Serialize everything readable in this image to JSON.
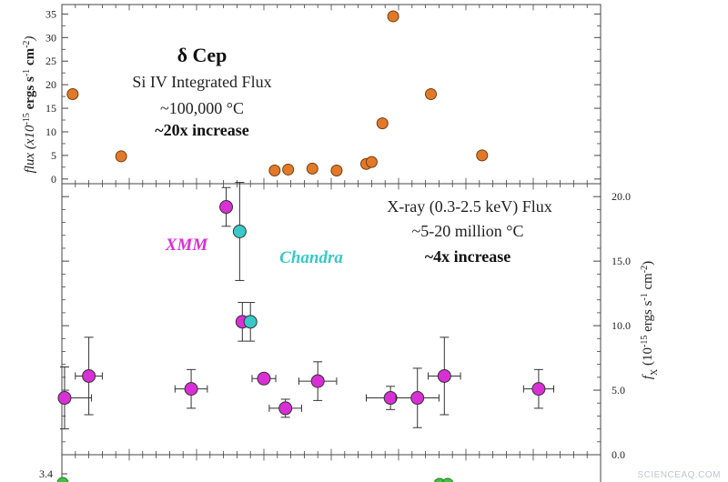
{
  "chart_data": [
    {
      "type": "scatter",
      "panel": "top",
      "title": "δ Cep",
      "subtitle": "Si IV Integrated Flux",
      "annotations": [
        "~100,000 °C",
        "~20x increase"
      ],
      "ylabel": "flux (x10^-15 ergs s^-1 cm^-2)",
      "ylabel_parts": {
        "pre": "flux (x10",
        "exp1": "-15",
        "mid1": " ergs s",
        "exp2": "-1",
        "mid2": " cm",
        "exp3": "-2",
        "post": ")"
      },
      "ylim": [
        -1,
        37
      ],
      "yticks": [
        "0",
        "5",
        "10",
        "15",
        "20",
        "25",
        "30",
        "35"
      ],
      "ytick_values": [
        0,
        5,
        10,
        15,
        20,
        25,
        30,
        35
      ],
      "xlim": [
        0,
        100
      ],
      "grid": false,
      "color": "#e07a2a",
      "points": [
        {
          "x": 2.0,
          "y": 18.0
        },
        {
          "x": 11.0,
          "y": 4.8
        },
        {
          "x": 39.5,
          "y": 1.8
        },
        {
          "x": 42.0,
          "y": 2.0
        },
        {
          "x": 46.5,
          "y": 2.2
        },
        {
          "x": 51.0,
          "y": 1.8
        },
        {
          "x": 56.5,
          "y": 3.2
        },
        {
          "x": 57.5,
          "y": 3.6
        },
        {
          "x": 59.5,
          "y": 11.8
        },
        {
          "x": 61.5,
          "y": 34.5
        },
        {
          "x": 68.5,
          "y": 18.0
        },
        {
          "x": 78.0,
          "y": 5.0
        }
      ]
    },
    {
      "type": "scatter",
      "panel": "middle",
      "title": "X-ray (0.3-2.5 keV) Flux",
      "annotations": [
        "~5-20 million °C",
        "~4x increase"
      ],
      "ylabel": "f_X (10^-15 ergs s^-1 cm^-2)",
      "ylabel_parts": {
        "pre": "f",
        "sub": "X",
        "pre2": " (10",
        "exp1": "-15",
        "mid1": " ergs s",
        "exp2": "-1",
        "mid2": " cm",
        "exp3": "-2",
        "post": ")"
      },
      "yaxis_side": "right",
      "ylim": [
        0,
        21
      ],
      "yticks": [
        "0.0",
        "5.0",
        "10.0",
        "15.0",
        "20.0"
      ],
      "ytick_values": [
        0,
        5,
        10,
        15,
        20
      ],
      "xlim": [
        0,
        100
      ],
      "grid": false,
      "series": [
        {
          "name": "XMM",
          "color": "#d92fd6",
          "points": [
            {
              "x": 0.5,
              "y": 4.4,
              "xerr": 5.0,
              "yerr": 2.4
            },
            {
              "x": 5.0,
              "y": 6.1,
              "xerr": 2.5,
              "yerr": 3.0
            },
            {
              "x": 24.0,
              "y": 5.1,
              "xerr": 3.0,
              "yerr": 1.5
            },
            {
              "x": 30.5,
              "y": 19.2,
              "xerr": 0.8,
              "yerr": 1.5
            },
            {
              "x": 33.5,
              "y": 10.3,
              "xerr": 1.0,
              "yerr": 1.5
            },
            {
              "x": 37.5,
              "y": 5.9,
              "xerr": 2.2,
              "yerr": 0.0
            },
            {
              "x": 41.5,
              "y": 3.6,
              "xerr": 3.0,
              "yerr": 0.7
            },
            {
              "x": 47.5,
              "y": 5.7,
              "xerr": 3.5,
              "yerr": 1.5
            },
            {
              "x": 61.0,
              "y": 4.4,
              "xerr": 4.5,
              "yerr": 0.9
            },
            {
              "x": 66.0,
              "y": 4.4,
              "xerr": 4.0,
              "yerr": 2.3
            },
            {
              "x": 71.0,
              "y": 6.1,
              "xerr": 3.0,
              "yerr": 3.0
            },
            {
              "x": 88.5,
              "y": 5.1,
              "xerr": 2.8,
              "yerr": 1.5
            }
          ]
        },
        {
          "name": "Chandra",
          "color": "#38c8c8",
          "points": [
            {
              "x": 33.0,
              "y": 17.3,
              "xerr": 0.0,
              "yerr": 3.8
            },
            {
              "x": 35.0,
              "y": 10.3,
              "xerr": 1.0,
              "yerr": 1.5
            }
          ]
        }
      ]
    },
    {
      "type": "scatter",
      "panel": "bottom",
      "yticks": [
        "3.4"
      ],
      "ytick_values": [
        3.4
      ],
      "xlim": [
        0,
        100
      ],
      "color": "#3ec43e",
      "note": "panel cut off at image bottom"
    }
  ],
  "watermark": "SCIENCEAQ.COM"
}
